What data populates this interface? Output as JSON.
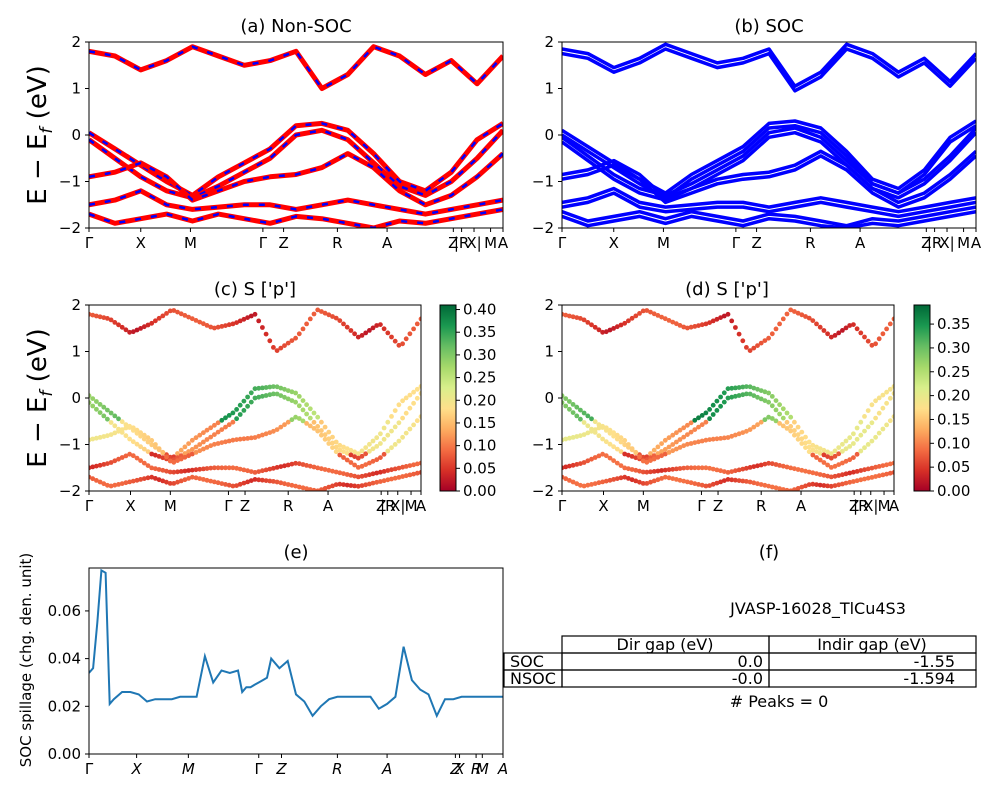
{
  "colors": {
    "nonsoc": "#ff0000",
    "soc": "#0000ff",
    "spillage": "#1f77b4",
    "cmap": [
      "#a50026",
      "#d73027",
      "#f46d43",
      "#fdae61",
      "#fee08b",
      "#d9ef8b",
      "#a6d96a",
      "#66bd63",
      "#1a9850",
      "#006837"
    ]
  },
  "ylabel_energy": "E − E_f (eV)",
  "ylabel_energy_main": "E − E",
  "ylabel_energy_sub": "f",
  "ylabel_energy_unit": " (eV)",
  "kpath_labels": [
    "Γ",
    "X",
    "M",
    "Γ",
    "Z",
    "R",
    "A",
    "Z",
    "|R",
    "X|",
    "M",
    "A"
  ],
  "chart_data": [
    {
      "id": "a",
      "type": "line",
      "title": "(a) Non-SOC",
      "ylim": [
        -2,
        2
      ],
      "yticks": [
        "2",
        "1",
        "0",
        "−1",
        "−2"
      ],
      "series": [
        {
          "values": [
            0.05,
            -0.3,
            -0.65,
            -1.0,
            -1.3,
            -0.9,
            -0.6,
            -0.3,
            0.2,
            0.25,
            0.1,
            -0.4,
            -1.0,
            -1.2,
            -0.8,
            -0.1,
            0.25
          ]
        },
        {
          "values": [
            -0.1,
            -0.5,
            -0.9,
            -1.2,
            -1.35,
            -1.1,
            -0.8,
            -0.5,
            0.0,
            0.1,
            -0.1,
            -0.6,
            -1.1,
            -1.3,
            -1.0,
            -0.5,
            0.1
          ]
        },
        {
          "values": [
            -0.9,
            -0.8,
            -0.6,
            -0.9,
            -1.4,
            -1.2,
            -1.0,
            -0.9,
            -0.85,
            -0.7,
            -0.4,
            -0.7,
            -1.2,
            -1.5,
            -1.3,
            -0.9,
            -0.4
          ]
        },
        {
          "values": [
            -1.5,
            -1.4,
            -1.2,
            -1.5,
            -1.6,
            -1.55,
            -1.5,
            -1.5,
            -1.6,
            -1.5,
            -1.4,
            -1.5,
            -1.6,
            -1.7,
            -1.6,
            -1.5,
            -1.4
          ]
        },
        {
          "values": [
            -1.7,
            -1.9,
            -1.8,
            -1.7,
            -1.85,
            -1.7,
            -1.8,
            -1.9,
            -1.75,
            -1.8,
            -1.9,
            -2.0,
            -1.85,
            -1.9,
            -1.8,
            -1.7,
            -1.6
          ]
        },
        {
          "values": [
            1.8,
            1.7,
            1.4,
            1.6,
            1.9,
            1.7,
            1.5,
            1.6,
            1.8,
            1.0,
            1.3,
            1.9,
            1.7,
            1.3,
            1.6,
            1.1,
            1.7
          ]
        }
      ]
    },
    {
      "id": "b",
      "type": "line",
      "title": "(b) SOC",
      "ylim": [
        -2,
        2
      ],
      "yticks": [
        "2",
        "1",
        "0",
        "−1",
        "−2"
      ],
      "series": [
        {
          "values": [
            0.05,
            -0.3,
            -0.65,
            -1.0,
            -1.3,
            -0.9,
            -0.6,
            -0.3,
            0.2,
            0.25,
            0.1,
            -0.4,
            -1.0,
            -1.2,
            -0.8,
            -0.1,
            0.25
          ]
        },
        {
          "values": [
            -0.1,
            -0.5,
            -0.9,
            -1.2,
            -1.35,
            -1.1,
            -0.8,
            -0.5,
            0.0,
            0.1,
            -0.1,
            -0.6,
            -1.1,
            -1.3,
            -1.0,
            -0.5,
            0.1
          ]
        },
        {
          "values": [
            -0.9,
            -0.8,
            -0.6,
            -0.9,
            -1.4,
            -1.2,
            -1.0,
            -0.9,
            -0.85,
            -0.7,
            -0.4,
            -0.7,
            -1.2,
            -1.5,
            -1.3,
            -0.9,
            -0.4
          ]
        },
        {
          "values": [
            -1.5,
            -1.4,
            -1.2,
            -1.5,
            -1.6,
            -1.55,
            -1.5,
            -1.5,
            -1.6,
            -1.5,
            -1.4,
            -1.5,
            -1.6,
            -1.7,
            -1.6,
            -1.5,
            -1.4
          ]
        },
        {
          "values": [
            -1.7,
            -1.9,
            -1.8,
            -1.7,
            -1.85,
            -1.7,
            -1.8,
            -1.9,
            -1.75,
            -1.8,
            -1.9,
            -2.0,
            -1.85,
            -1.9,
            -1.8,
            -1.7,
            -1.6
          ]
        },
        {
          "values": [
            1.8,
            1.7,
            1.4,
            1.6,
            1.9,
            1.7,
            1.5,
            1.6,
            1.8,
            1.0,
            1.3,
            1.9,
            1.7,
            1.3,
            1.6,
            1.1,
            1.7
          ]
        }
      ]
    },
    {
      "id": "c",
      "type": "scatter",
      "title": "(c)  S ['p']",
      "ylim": [
        -2,
        2
      ],
      "yticks": [
        "2",
        "1",
        "0",
        "−1",
        "−2"
      ],
      "colorbar": {
        "range": [
          0,
          0.41
        ],
        "ticks": [
          "0.40",
          "0.35",
          "0.30",
          "0.25",
          "0.20",
          "0.15",
          "0.10",
          "0.05",
          "0.00"
        ]
      }
    },
    {
      "id": "d",
      "type": "scatter",
      "title": "(d) S ['p']",
      "ylim": [
        -2,
        2
      ],
      "yticks": [
        "2",
        "1",
        "0",
        "−1",
        "−2"
      ],
      "colorbar": {
        "range": [
          0,
          0.39
        ],
        "ticks": [
          "0.35",
          "0.30",
          "0.25",
          "0.20",
          "0.15",
          "0.10",
          "0.05",
          "0.00"
        ]
      }
    },
    {
      "id": "e",
      "type": "line",
      "title": "(e)",
      "ylabel": "SOC spillage (chg. den. unit)",
      "ylim": [
        0,
        0.078
      ],
      "yticks": [
        "0.06",
        "0.04",
        "0.02",
        "0.00"
      ],
      "x": [
        0,
        1,
        2,
        3,
        4,
        5,
        6,
        8,
        10,
        12,
        14,
        16,
        18,
        20,
        22,
        24,
        26,
        28,
        30,
        32,
        34,
        36,
        37,
        38,
        39,
        40,
        41,
        42,
        43,
        44,
        46,
        48,
        50,
        52,
        54,
        56,
        58,
        60,
        62,
        64,
        66,
        68,
        70,
        72,
        74,
        76,
        78,
        80,
        82,
        84,
        86,
        88,
        90,
        92,
        94,
        96,
        98,
        100
      ],
      "y": [
        0.034,
        0.036,
        0.055,
        0.077,
        0.076,
        0.021,
        0.023,
        0.026,
        0.026,
        0.025,
        0.022,
        0.023,
        0.023,
        0.023,
        0.024,
        0.024,
        0.024,
        0.041,
        0.03,
        0.035,
        0.034,
        0.035,
        0.026,
        0.028,
        0.028,
        0.029,
        0.03,
        0.031,
        0.032,
        0.04,
        0.036,
        0.039,
        0.025,
        0.022,
        0.016,
        0.02,
        0.023,
        0.024,
        0.024,
        0.024,
        0.024,
        0.024,
        0.019,
        0.021,
        0.024,
        0.045,
        0.031,
        0.027,
        0.025,
        0.016,
        0.023,
        0.023,
        0.024,
        0.024,
        0.024,
        0.024,
        0.024,
        0.024
      ],
      "xticks": [
        "Γ",
        "X",
        "M",
        "Γ",
        "Z",
        "R",
        "A",
        "Z",
        "X",
        "R",
        "M",
        "A"
      ]
    }
  ],
  "panel_f": {
    "title": "(f)",
    "material": "JVASP-16028_TlCu4S3",
    "columns": [
      "Dir gap (eV)",
      "Indir gap (eV)"
    ],
    "rows": [
      {
        "label": "SOC",
        "dir": "0.0",
        "indir": "-1.55"
      },
      {
        "label": "NSOC",
        "dir": "-0.0",
        "indir": "-1.594"
      }
    ],
    "peaks": "# Peaks = 0"
  }
}
